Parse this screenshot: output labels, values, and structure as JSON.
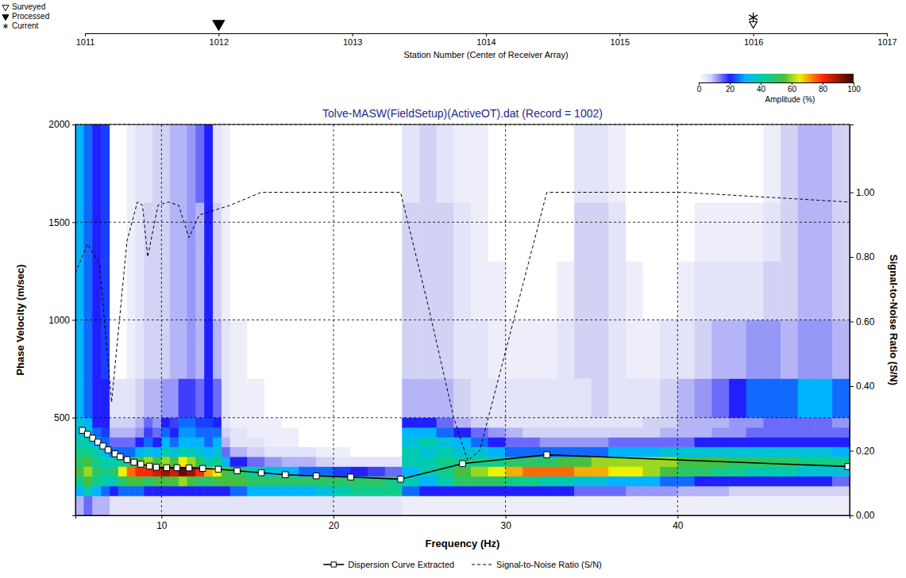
{
  "chart_data": {
    "type": "heatmap",
    "title": "Tolve-MASW(FieldSetup)(ActiveOT).dat (Record = 1002)",
    "xlabel": "Frequency (Hz)",
    "ylabel": "Phase Velocity (m/sec)",
    "y2label": "Signal-to-Noise Ratio (S/N)",
    "xlim": [
      5,
      50
    ],
    "xticks": [
      10,
      20,
      30,
      40
    ],
    "ylim": [
      0,
      2000
    ],
    "yticks": [
      500,
      1000,
      1500,
      2000
    ],
    "y2lim": [
      0,
      1.21
    ],
    "y2ticks": [
      {
        "value": 0,
        "label": "0.00"
      },
      {
        "value": 0.2,
        "label": "0.20"
      },
      {
        "value": 0.4,
        "label": "0.40"
      },
      {
        "value": 0.6,
        "label": "0.60"
      },
      {
        "value": 0.8,
        "label": "0.80"
      },
      {
        "value": 1,
        "label": "1.00"
      }
    ],
    "grid": true,
    "legend": "bottom",
    "series": [
      {
        "name": "Dispersion Curve Extracted",
        "type": "line",
        "marker": "square",
        "color": "#000000",
        "x": [
          5.4,
          5.7,
          6.0,
          6.3,
          6.6,
          6.9,
          7.3,
          7.6,
          8.0,
          8.4,
          8.8,
          9.3,
          9.7,
          10.3,
          10.9,
          11.6,
          12.4,
          13.3,
          14.4,
          15.8,
          17.2,
          19.0,
          21.0,
          23.9,
          27.5,
          32.4,
          49.9
        ],
        "values": [
          435,
          415,
          395,
          375,
          355,
          335,
          315,
          300,
          285,
          272,
          262,
          252,
          246,
          244,
          244,
          243,
          240,
          236,
          228,
          218,
          208,
          202,
          196,
          185,
          265,
          310,
          250
        ]
      },
      {
        "name": "Signal-to-Noise Ratio (S/N)",
        "type": "line",
        "line_style": "dashed",
        "axis": "y2",
        "color": "#000000",
        "x": [
          5.0,
          5.7,
          6.4,
          7.1,
          8.0,
          8.6,
          8.9,
          9.2,
          9.8,
          10.4,
          11.0,
          11.6,
          12.2,
          14.0,
          15.8,
          23.9,
          25.5,
          27.0,
          27.8,
          28.5,
          32.4,
          40.3,
          46.8,
          49.9
        ],
        "values": [
          0.75,
          0.84,
          0.78,
          0.35,
          0.85,
          0.97,
          0.96,
          0.8,
          0.96,
          0.97,
          0.96,
          0.86,
          0.93,
          0.96,
          1,
          1,
          0.65,
          0.3,
          0.17,
          0.2,
          1,
          1,
          0.98,
          0.97
        ]
      }
    ],
    "heatmap": {
      "x_edges": [
        5,
        5.5,
        6,
        6.5,
        7,
        7.5,
        8,
        8.5,
        9,
        9.5,
        10,
        10.5,
        11,
        11.5,
        12,
        12.5,
        13,
        13.5,
        14,
        15,
        16,
        17,
        18,
        19,
        20,
        21,
        22,
        23,
        24,
        25,
        26,
        27,
        28,
        29,
        30,
        31,
        32,
        33,
        34,
        35,
        36,
        37,
        38,
        39,
        40,
        41,
        42,
        43,
        44,
        45,
        46,
        47,
        48,
        49,
        50
      ],
      "y_edges": [
        0,
        100,
        150,
        200,
        250,
        300,
        350,
        400,
        450,
        500,
        700,
        1000,
        1300,
        1600,
        2000
      ],
      "amplitude": [
        [
          10,
          30,
          45,
          55,
          50,
          45,
          40,
          35,
          35,
          30,
          30,
          30,
          30,
          30
        ],
        [
          15,
          40,
          55,
          60,
          55,
          45,
          40,
          35,
          30,
          25,
          25,
          25,
          25,
          25
        ],
        [
          10,
          30,
          45,
          50,
          45,
          40,
          30,
          25,
          20,
          20,
          20,
          20,
          20,
          20
        ],
        [
          10,
          25,
          40,
          45,
          40,
          30,
          25,
          22,
          20,
          20,
          22,
          22,
          22,
          22
        ],
        [
          5,
          20,
          40,
          50,
          40,
          25,
          15,
          10,
          8,
          5,
          0,
          0,
          0,
          0
        ],
        [
          5,
          25,
          50,
          65,
          45,
          25,
          15,
          10,
          8,
          5,
          0,
          0,
          0,
          0
        ],
        [
          5,
          25,
          55,
          75,
          50,
          25,
          15,
          10,
          8,
          5,
          3,
          3,
          3,
          3
        ],
        [
          5,
          25,
          55,
          80,
          55,
          30,
          20,
          12,
          10,
          8,
          5,
          5,
          5,
          5
        ],
        [
          5,
          20,
          50,
          80,
          60,
          35,
          25,
          18,
          15,
          10,
          8,
          8,
          8,
          5
        ],
        [
          5,
          20,
          55,
          85,
          55,
          30,
          20,
          15,
          12,
          10,
          8,
          8,
          8,
          8
        ],
        [
          5,
          20,
          55,
          90,
          60,
          40,
          30,
          25,
          20,
          12,
          8,
          8,
          8,
          8
        ],
        [
          5,
          20,
          55,
          85,
          55,
          35,
          25,
          20,
          18,
          12,
          10,
          10,
          10,
          10
        ],
        [
          5,
          20,
          60,
          95,
          65,
          40,
          30,
          28,
          25,
          18,
          10,
          10,
          10,
          10
        ],
        [
          5,
          20,
          55,
          90,
          60,
          40,
          30,
          28,
          25,
          18,
          12,
          12,
          12,
          12
        ],
        [
          5,
          20,
          50,
          80,
          50,
          35,
          30,
          25,
          22,
          15,
          10,
          10,
          10,
          15
        ],
        [
          5,
          20,
          50,
          70,
          40,
          30,
          25,
          25,
          22,
          20,
          20,
          20,
          20,
          20
        ],
        [
          5,
          20,
          55,
          65,
          45,
          35,
          30,
          25,
          20,
          15,
          10,
          8,
          8,
          5
        ],
        [
          5,
          20,
          55,
          55,
          30,
          15,
          10,
          8,
          5,
          5,
          5,
          3,
          3,
          3
        ],
        [
          5,
          25,
          55,
          50,
          20,
          10,
          5,
          5,
          3,
          3,
          3,
          0,
          0,
          0
        ],
        [
          5,
          30,
          50,
          40,
          15,
          8,
          5,
          3,
          3,
          3,
          0,
          0,
          0,
          0
        ],
        [
          5,
          30,
          50,
          35,
          12,
          5,
          3,
          3,
          3,
          0,
          0,
          0,
          0,
          0
        ],
        [
          5,
          30,
          50,
          30,
          10,
          5,
          3,
          3,
          0,
          0,
          0,
          0,
          0,
          0
        ],
        [
          5,
          30,
          50,
          25,
          10,
          5,
          0,
          0,
          0,
          0,
          0,
          0,
          0,
          0
        ],
        [
          5,
          35,
          50,
          25,
          8,
          3,
          0,
          0,
          0,
          0,
          0,
          0,
          0,
          0
        ],
        [
          5,
          40,
          50,
          22,
          5,
          3,
          0,
          0,
          0,
          0,
          0,
          0,
          0,
          0
        ],
        [
          5,
          45,
          50,
          20,
          5,
          0,
          0,
          0,
          0,
          0,
          0,
          0,
          0,
          0
        ],
        [
          5,
          45,
          50,
          18,
          5,
          0,
          0,
          0,
          0,
          0,
          0,
          0,
          0,
          0
        ],
        [
          5,
          45,
          45,
          15,
          5,
          0,
          0,
          0,
          0,
          0,
          0,
          0,
          0,
          0
        ],
        [
          3,
          25,
          40,
          30,
          40,
          40,
          35,
          30,
          20,
          10,
          8,
          8,
          8,
          5
        ],
        [
          3,
          20,
          30,
          40,
          40,
          35,
          40,
          30,
          20,
          10,
          8,
          8,
          8,
          8
        ],
        [
          3,
          20,
          40,
          45,
          45,
          40,
          35,
          25,
          15,
          10,
          8,
          8,
          8,
          5
        ],
        [
          3,
          20,
          50,
          55,
          45,
          35,
          30,
          20,
          10,
          8,
          5,
          5,
          5,
          3
        ],
        [
          3,
          20,
          50,
          60,
          45,
          35,
          25,
          15,
          8,
          5,
          5,
          3,
          3,
          3
        ],
        [
          3,
          20,
          50,
          65,
          45,
          30,
          20,
          12,
          5,
          5,
          3,
          3,
          0,
          0
        ],
        [
          3,
          20,
          45,
          70,
          50,
          25,
          15,
          10,
          5,
          5,
          3,
          0,
          0,
          0
        ],
        [
          3,
          20,
          45,
          75,
          50,
          25,
          15,
          8,
          5,
          5,
          3,
          0,
          0,
          0
        ],
        [
          3,
          20,
          40,
          75,
          50,
          25,
          12,
          8,
          5,
          5,
          3,
          0,
          0,
          0
        ],
        [
          3,
          20,
          40,
          75,
          55,
          25,
          12,
          8,
          5,
          5,
          5,
          3,
          0,
          0
        ],
        [
          3,
          15,
          35,
          70,
          55,
          25,
          12,
          8,
          5,
          5,
          8,
          8,
          8,
          5
        ],
        [
          3,
          15,
          35,
          70,
          60,
          25,
          12,
          8,
          5,
          8,
          8,
          8,
          8,
          5
        ],
        [
          3,
          15,
          30,
          65,
          60,
          30,
          15,
          8,
          5,
          5,
          5,
          5,
          5,
          3
        ],
        [
          3,
          12,
          30,
          65,
          60,
          30,
          15,
          8,
          5,
          5,
          3,
          3,
          0,
          0
        ],
        [
          3,
          12,
          30,
          60,
          60,
          30,
          15,
          8,
          8,
          5,
          3,
          0,
          0,
          0
        ],
        [
          3,
          12,
          25,
          55,
          60,
          35,
          15,
          10,
          8,
          8,
          5,
          0,
          0,
          0
        ],
        [
          3,
          10,
          25,
          50,
          55,
          35,
          15,
          10,
          10,
          10,
          5,
          3,
          0,
          0
        ],
        [
          3,
          10,
          20,
          50,
          55,
          35,
          20,
          10,
          10,
          12,
          8,
          5,
          3,
          0
        ],
        [
          3,
          10,
          20,
          45,
          55,
          35,
          20,
          12,
          10,
          15,
          10,
          5,
          3,
          0
        ],
        [
          3,
          8,
          20,
          45,
          50,
          35,
          20,
          12,
          12,
          20,
          10,
          5,
          3,
          0
        ],
        [
          3,
          8,
          20,
          40,
          50,
          35,
          20,
          15,
          12,
          25,
          12,
          5,
          3,
          0
        ],
        [
          3,
          8,
          20,
          40,
          50,
          35,
          20,
          15,
          15,
          25,
          12,
          8,
          5,
          3
        ],
        [
          3,
          8,
          20,
          40,
          50,
          35,
          20,
          15,
          15,
          25,
          10,
          8,
          8,
          8
        ],
        [
          3,
          8,
          20,
          35,
          45,
          35,
          20,
          15,
          15,
          30,
          12,
          10,
          10,
          10
        ],
        [
          3,
          8,
          20,
          35,
          45,
          35,
          20,
          15,
          15,
          30,
          12,
          10,
          10,
          10
        ],
        [
          3,
          8,
          15,
          35,
          45,
          30,
          20,
          15,
          12,
          25,
          10,
          8,
          8,
          8
        ]
      ]
    },
    "colorbar": {
      "label": "Amplitude (%)",
      "lim": [
        0,
        100
      ],
      "ticks": [
        0,
        20,
        40,
        60,
        80,
        100
      ]
    },
    "station_strip": {
      "xlabel": "Station Number (Center of Receiver Array)",
      "xlim": [
        1011,
        1017
      ],
      "xticks": [
        1011,
        1012,
        1013,
        1014,
        1015,
        1016,
        1017
      ],
      "series": [
        {
          "name": "Surveyed",
          "marker": "triangle-down-open",
          "x": [
            1016
          ]
        },
        {
          "name": "Processed",
          "marker": "triangle-down",
          "x": [
            1012
          ]
        },
        {
          "name": "Current",
          "marker": "asterisk",
          "x": [
            1016
          ]
        }
      ]
    }
  }
}
